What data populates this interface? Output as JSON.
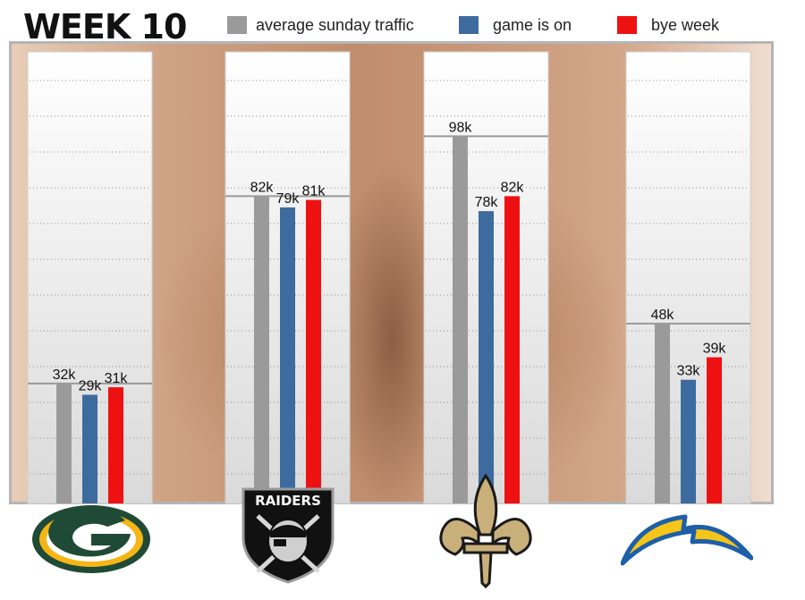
{
  "header": {
    "title": "WEEK 10"
  },
  "legend": [
    {
      "label": "average sunday traffic",
      "color": "#9a9a9a"
    },
    {
      "label": "game is on",
      "color": "#3d6b9e"
    },
    {
      "label": "bye week",
      "color": "#ee1111"
    }
  ],
  "teams": [
    {
      "icon": "packers-logo-icon"
    },
    {
      "icon": "raiders-logo-icon",
      "logo_text": "RAIDERS"
    },
    {
      "icon": "saints-fleur-de-lis-icon"
    },
    {
      "icon": "chargers-bolt-icon"
    }
  ],
  "chart_data": {
    "type": "bar",
    "title": "WEEK 10",
    "categories": [
      "Packers",
      "Raiders",
      "Saints",
      "Chargers"
    ],
    "unit": "k",
    "ylim": [
      0,
      105
    ],
    "grid": true,
    "legend_position": "top",
    "series": [
      {
        "name": "average sunday traffic",
        "color": "#9a9a9a",
        "values": [
          32,
          82,
          98,
          48
        ],
        "labels": [
          "32k",
          "82k",
          "98k",
          "48k"
        ]
      },
      {
        "name": "game is on",
        "color": "#3d6b9e",
        "values": [
          29,
          79,
          78,
          33
        ],
        "labels": [
          "29k",
          "79k",
          "78k",
          "33k"
        ]
      },
      {
        "name": "bye week",
        "color": "#ee1111",
        "values": [
          31,
          81,
          82,
          39
        ],
        "labels": [
          "31k",
          "81k",
          "82k",
          "39k"
        ]
      }
    ]
  }
}
